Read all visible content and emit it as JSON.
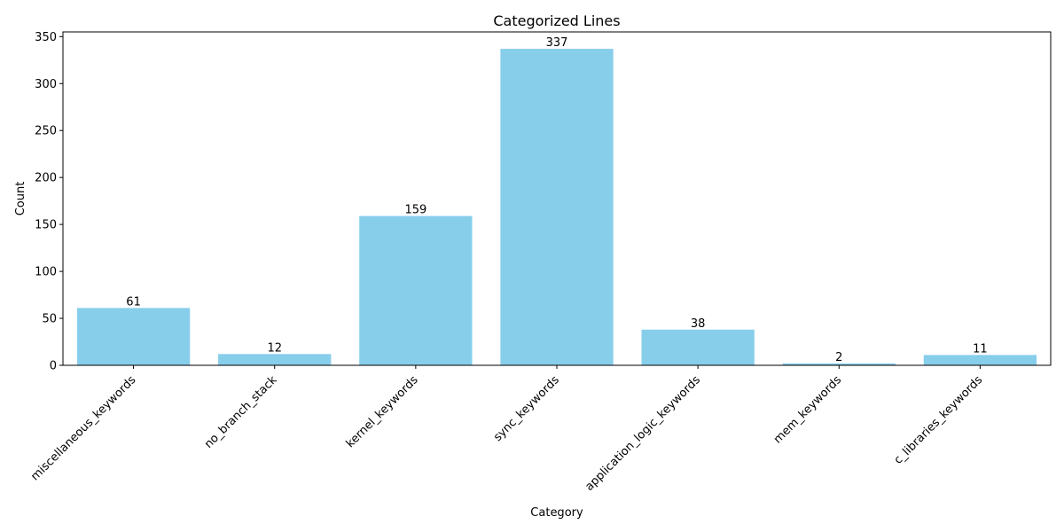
{
  "chart_data": {
    "type": "bar",
    "title": "Categorized Lines",
    "xlabel": "Category",
    "ylabel": "Count",
    "categories": [
      "miscellaneous_keywords",
      "no_branch_stack",
      "kernel_keywords",
      "sync_keywords",
      "application_logic_keywords",
      "mem_keywords",
      "c_libraries_keywords"
    ],
    "values": [
      61,
      12,
      159,
      337,
      38,
      2,
      11
    ],
    "ylim": [
      0,
      355
    ],
    "yticks": [
      0,
      50,
      100,
      150,
      200,
      250,
      300,
      350
    ],
    "grid": false,
    "bar_color": "#87CEEB",
    "data_labels": true,
    "xtick_rotation": 45
  }
}
